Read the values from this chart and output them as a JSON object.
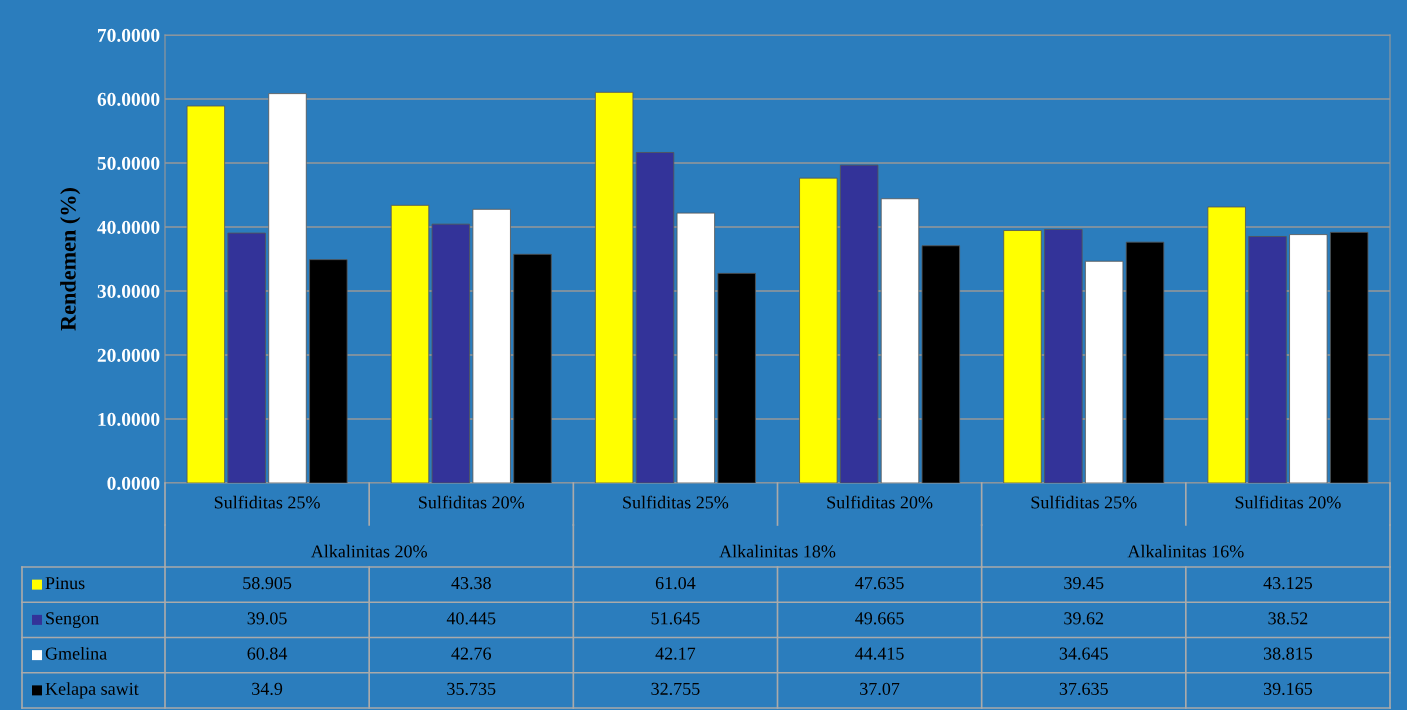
{
  "chart_data": {
    "type": "bar",
    "ylabel": "Rendemen (%)",
    "categories": [
      "Sulfiditas 25%",
      "Sulfiditas 20%",
      "Sulfiditas 25%",
      "Sulfiditas 20%",
      "Sulfiditas 25%",
      "Sulfiditas 20%"
    ],
    "annotations": [
      "Alkalinitas 20%",
      "Alkalinitas 18%",
      "Alkalinitas 16%"
    ],
    "series": [
      {
        "name": "Pinus",
        "color": "#ffff00",
        "values": [
          58.905,
          43.38,
          61.04,
          47.635,
          39.45,
          43.125
        ]
      },
      {
        "name": "Sengon",
        "color": "#333399",
        "values": [
          39.05,
          40.445,
          51.645,
          49.665,
          39.62,
          38.52
        ]
      },
      {
        "name": "Gmelina",
        "color": "#ffffff",
        "values": [
          60.84,
          42.76,
          42.17,
          44.415,
          34.645,
          38.815
        ]
      },
      {
        "name": "Kelapa sawit",
        "color": "#000000",
        "values": [
          34.9,
          35.735,
          32.755,
          37.07,
          37.635,
          39.165
        ]
      }
    ],
    "ylim": [
      0,
      70
    ],
    "yticks": [
      {
        "value": 0,
        "label": "0.0000"
      },
      {
        "value": 10,
        "label": "10.0000"
      },
      {
        "value": 20,
        "label": "20.0000"
      },
      {
        "value": 30,
        "label": "30.0000"
      },
      {
        "value": 40,
        "label": "40.0000"
      },
      {
        "value": 50,
        "label": "50.0000"
      },
      {
        "value": 60,
        "label": "60.0000"
      },
      {
        "value": 70,
        "label": "70.0000"
      }
    ],
    "grid": "y",
    "data_labels": true,
    "legend": "bottom"
  }
}
